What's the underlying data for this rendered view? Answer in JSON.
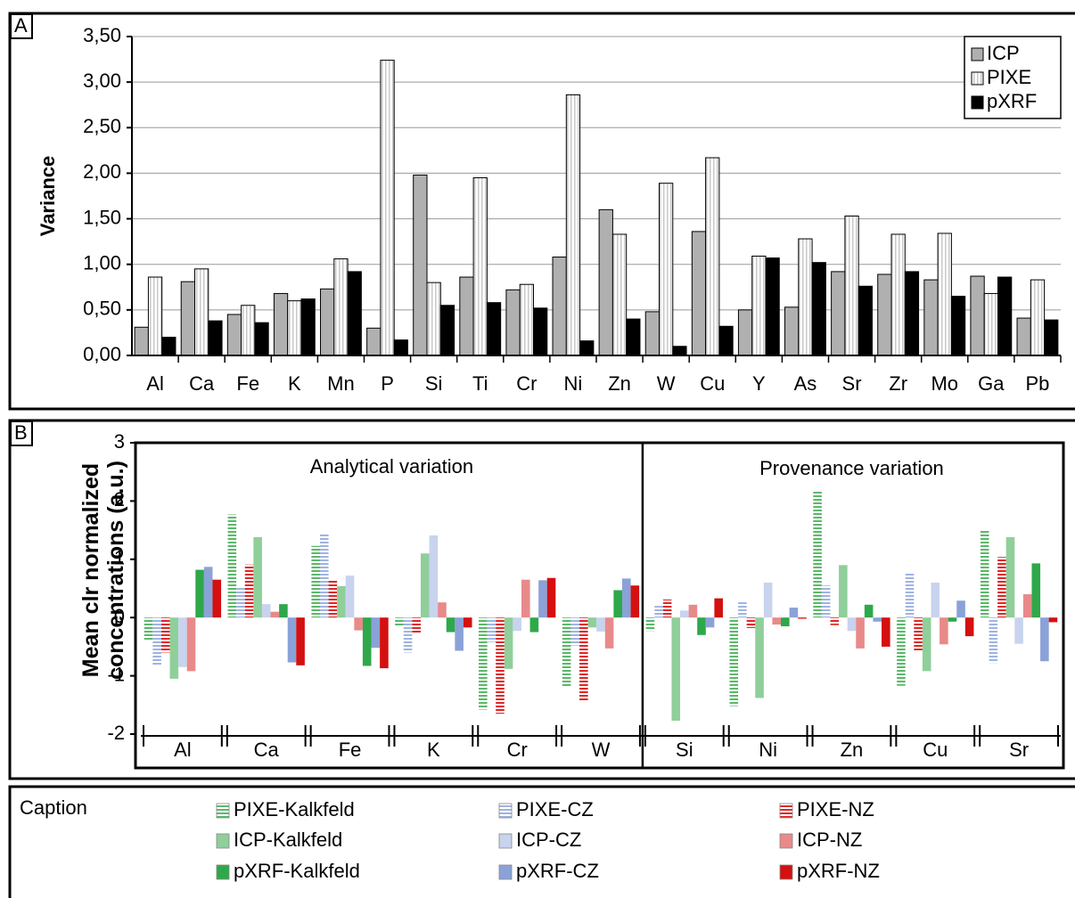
{
  "chart_data": [
    {
      "type": "bar",
      "panel_label": "A",
      "y_label": "Variance",
      "categories": [
        "Al",
        "Ca",
        "Fe",
        "K",
        "Mn",
        "P",
        "Si",
        "Ti",
        "Cr",
        "Ni",
        "Zn",
        "W",
        "Cu",
        "Y",
        "As",
        "Sr",
        "Zr",
        "Mo",
        "Ga",
        "Pb"
      ],
      "series": [
        {
          "name": "ICP",
          "color": "#b0b0b0",
          "values": [
            0.31,
            0.81,
            0.45,
            0.68,
            0.73,
            0.3,
            1.98,
            0.86,
            0.72,
            1.08,
            1.6,
            0.48,
            1.36,
            0.5,
            0.53,
            0.92,
            0.89,
            0.83,
            0.87,
            0.41
          ]
        },
        {
          "name": "PIXE",
          "color": "#c8c8c8",
          "hatch": "vertical",
          "values": [
            0.86,
            0.95,
            0.55,
            0.6,
            1.06,
            3.24,
            0.8,
            1.95,
            0.78,
            2.86,
            1.33,
            1.89,
            2.17,
            1.09,
            1.28,
            1.53,
            1.33,
            1.34,
            0.68,
            0.83
          ]
        },
        {
          "name": "pXRF",
          "color": "#000000",
          "values": [
            0.2,
            0.38,
            0.36,
            0.62,
            0.92,
            0.17,
            0.55,
            0.58,
            0.52,
            0.16,
            0.4,
            0.1,
            0.32,
            1.07,
            1.02,
            0.76,
            0.92,
            0.65,
            0.86,
            0.39
          ]
        }
      ],
      "ylim": [
        0,
        3.5
      ],
      "yticks": [
        {
          "value": 0,
          "label": "0,00"
        },
        {
          "value": 0.5,
          "label": "0,50"
        },
        {
          "value": 1,
          "label": "1,00"
        },
        {
          "value": 1.5,
          "label": "1,50"
        },
        {
          "value": 2,
          "label": "2,00"
        },
        {
          "value": 2.5,
          "label": "2,50"
        },
        {
          "value": 3,
          "label": "3,00"
        },
        {
          "value": 3.5,
          "label": "3,50"
        }
      ],
      "grid": true,
      "legend": "upper right"
    },
    {
      "type": "bar",
      "panel_label": "B",
      "y_label": "Mean clr normalized concentrations (a.u.)",
      "annotations": [
        "Analytical variation",
        "Provenance variation"
      ],
      "categories": [
        "Al",
        "Ca",
        "Fe",
        "K",
        "Cr",
        "W",
        "Si",
        "Ni",
        "Zn",
        "Cu",
        "Sr"
      ],
      "series": [
        {
          "name": "PIXE-Kalkfeld",
          "color": "#5cb86a",
          "hatch": "horizontal",
          "values": [
            -0.38,
            1.77,
            1.23,
            -0.15,
            -1.58,
            -1.18,
            -0.23,
            -1.52,
            2.16,
            -1.17,
            1.5
          ]
        },
        {
          "name": "PIXE-CZ",
          "color": "#9fb4e0",
          "hatch": "horizontal",
          "values": [
            -0.82,
            0.53,
            1.44,
            -0.6,
            -0.42,
            -0.48,
            0.2,
            0.27,
            0.55,
            0.78,
            -0.78
          ]
        },
        {
          "name": "PIXE-NZ",
          "color": "#e02828",
          "hatch": "horizontal",
          "values": [
            -0.6,
            0.91,
            0.66,
            -0.28,
            -1.65,
            -1.45,
            0.31,
            -0.18,
            -0.13,
            -0.58,
            1.04
          ]
        },
        {
          "name": "ICP-Kalkfeld",
          "color": "#8fcf9a",
          "values": [
            -1.05,
            1.38,
            0.54,
            1.1,
            -0.88,
            -0.17,
            -1.77,
            -1.38,
            0.9,
            -0.92,
            1.38
          ]
        },
        {
          "name": "ICP-CZ",
          "color": "#c8d3ee",
          "values": [
            -0.85,
            0.23,
            0.72,
            1.41,
            -0.23,
            -0.24,
            0.12,
            0.6,
            -0.23,
            0.6,
            -0.45
          ]
        },
        {
          "name": "ICP-NZ",
          "color": "#e88a8a",
          "values": [
            -0.92,
            0.1,
            -0.22,
            0.26,
            0.65,
            -0.53,
            0.22,
            -0.12,
            -0.53,
            -0.46,
            0.4
          ]
        },
        {
          "name": "pXRF-Kalkfeld",
          "color": "#2ea84a",
          "values": [
            0.82,
            0.23,
            -0.83,
            -0.25,
            -0.25,
            0.47,
            -0.3,
            -0.15,
            0.22,
            -0.07,
            0.93
          ]
        },
        {
          "name": "pXRF-CZ",
          "color": "#8aa2d8",
          "values": [
            0.87,
            -0.77,
            -0.52,
            -0.57,
            0.64,
            0.67,
            -0.17,
            0.17,
            -0.07,
            0.29,
            -0.75
          ]
        },
        {
          "name": "pXRF-NZ",
          "color": "#d41010",
          "values": [
            0.65,
            -0.82,
            -0.87,
            -0.17,
            0.68,
            0.55,
            0.33,
            -0.02,
            -0.5,
            -0.32,
            -0.08
          ]
        }
      ],
      "ylim": [
        -2,
        3
      ],
      "yticks": [
        -2,
        -1,
        0,
        1,
        2,
        3
      ],
      "legend_title": "Caption",
      "legend": "bottom"
    }
  ]
}
